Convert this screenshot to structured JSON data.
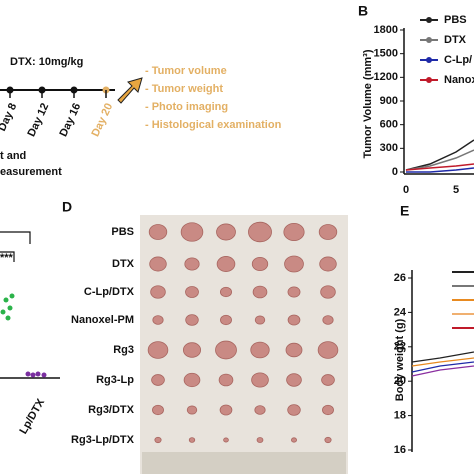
{
  "panel_a": {
    "dose": "DTX: 10mg/kg",
    "days": [
      "Day 8",
      "Day 12",
      "Day 16",
      "Day 20"
    ],
    "outcomes": [
      "- Tumor volume",
      "- Tumor weight",
      "- Photo imaging",
      "- Histological examination"
    ],
    "partial_labels": [
      "t and",
      "easurement"
    ]
  },
  "panel_b": {
    "label": "B",
    "y_axis_label": "Tumor Volume (mm³)",
    "yticks": [
      "0",
      "300",
      "600",
      "900",
      "1200",
      "1500",
      "1800"
    ],
    "xticks": [
      "0",
      "5"
    ],
    "legend": [
      "PBS",
      "DTX",
      "C-Lp/",
      "Nanox"
    ]
  },
  "panel_c": {
    "significance": "***",
    "x_label": "Lp/DTX"
  },
  "panel_d": {
    "label": "D",
    "groups": [
      "PBS",
      "DTX",
      "C-Lp/DTX",
      "Nanoxel-PM",
      "Rg3",
      "Rg3-Lp",
      "Rg3/DTX",
      "Rg3-Lp/DTX"
    ]
  },
  "panel_e": {
    "label": "E",
    "y_axis_label": "Body weight (g)",
    "yticks": [
      "16",
      "18",
      "20",
      "22",
      "24",
      "26"
    ]
  }
}
